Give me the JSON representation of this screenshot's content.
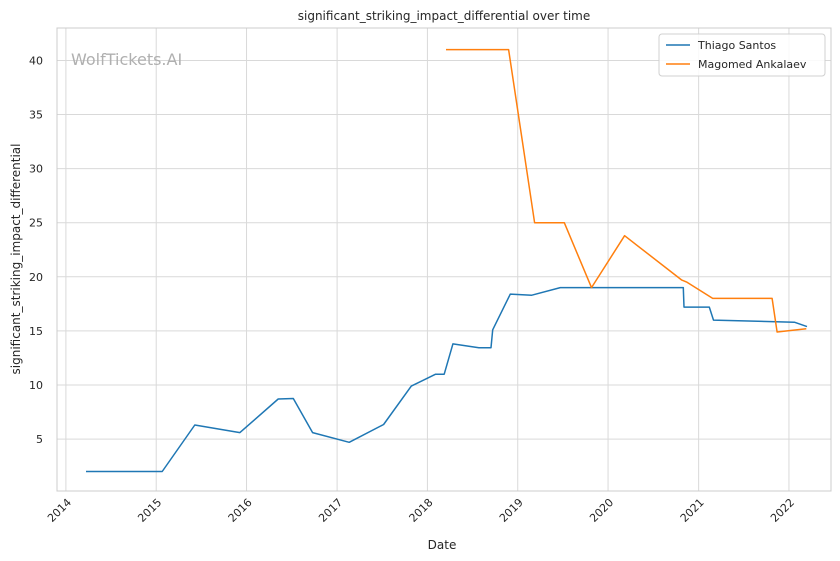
{
  "chart_data": {
    "type": "line",
    "title": "significant_striking_impact_differential over time",
    "xlabel": "Date",
    "ylabel": "significant_striking_impact_differential",
    "watermark": "WolfTickets.AI",
    "xlim": [
      "2013-11-26",
      "2022-06-20"
    ],
    "ylim": [
      0.2,
      43.0
    ],
    "xticks": [
      "2014",
      "2015",
      "2016",
      "2017",
      "2018",
      "2019",
      "2020",
      "2021",
      "2022"
    ],
    "yticks": [
      5,
      10,
      15,
      20,
      25,
      30,
      35,
      40
    ],
    "grid": true,
    "legend_position": "top-right",
    "series": [
      {
        "name": "Thiago Santos",
        "color": "#1f77b4",
        "points": [
          [
            "2014-03-23",
            2.0
          ],
          [
            "2015-01-25",
            2.0
          ],
          [
            "2015-06-06",
            6.3
          ],
          [
            "2015-12-05",
            5.6
          ],
          [
            "2016-05-08",
            8.7
          ],
          [
            "2016-07-08",
            8.75
          ],
          [
            "2016-09-24",
            5.6
          ],
          [
            "2017-02-19",
            4.7
          ],
          [
            "2017-07-08",
            6.35
          ],
          [
            "2017-10-28",
            9.9
          ],
          [
            "2018-02-03",
            11.0
          ],
          [
            "2018-03-10",
            11.0
          ],
          [
            "2018-04-14",
            13.8
          ],
          [
            "2018-07-28",
            13.45
          ],
          [
            "2018-09-15",
            13.45
          ],
          [
            "2018-09-22",
            15.1
          ],
          [
            "2018-12-02",
            18.4
          ],
          [
            "2019-02-27",
            18.3
          ],
          [
            "2019-06-22",
            19.0
          ],
          [
            "2019-10-20",
            19.0
          ],
          [
            "2020-10-31",
            19.0
          ],
          [
            "2020-11-03",
            17.2
          ],
          [
            "2021-02-13",
            17.2
          ],
          [
            "2021-03-02",
            16.0
          ],
          [
            "2022-01-23",
            15.8
          ],
          [
            "2022-03-15",
            15.4
          ]
        ]
      },
      {
        "name": "Magomed Ankalaev",
        "color": "#ff7f0e",
        "points": [
          [
            "2018-03-17",
            41.0
          ],
          [
            "2018-11-25",
            41.0
          ],
          [
            "2019-03-10",
            25.0
          ],
          [
            "2019-07-08",
            25.0
          ],
          [
            "2019-10-26",
            19.0
          ],
          [
            "2020-03-08",
            23.8
          ],
          [
            "2020-10-25",
            19.7
          ],
          [
            "2020-11-15",
            19.5
          ],
          [
            "2021-02-27",
            18.0
          ],
          [
            "2021-10-25",
            18.0
          ],
          [
            "2021-11-14",
            14.9
          ],
          [
            "2022-03-12",
            15.2
          ]
        ]
      }
    ]
  }
}
